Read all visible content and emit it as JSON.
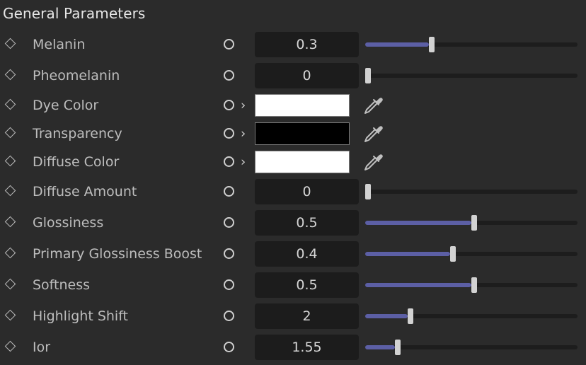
{
  "section": {
    "title": "General Parameters"
  },
  "colors": {
    "accent": "#5c5fa5",
    "track": "#1d1d1d",
    "field": "#1c1c1c"
  },
  "params": [
    {
      "id": "melanin",
      "label": "Melanin",
      "type": "slider",
      "value": "0.3",
      "fraction": 0.3
    },
    {
      "id": "pheomelanin",
      "label": "Pheomelanin",
      "type": "slider",
      "value": "0",
      "fraction": 0
    },
    {
      "id": "dye-color",
      "label": "Dye Color",
      "type": "color",
      "color": "#ffffff",
      "icon": "eyedropper-icon"
    },
    {
      "id": "transparency",
      "label": "Transparency",
      "type": "color",
      "color": "#000000",
      "icon": "eyedropper-icon"
    },
    {
      "id": "diffuse-color",
      "label": "Diffuse Color",
      "type": "color",
      "color": "#ffffff",
      "icon": "eyedropper-icon"
    },
    {
      "id": "diffuse-amount",
      "label": "Diffuse Amount",
      "type": "slider",
      "value": "0",
      "fraction": 0
    },
    {
      "id": "glossiness",
      "label": "Glossiness",
      "type": "slider",
      "value": "0.5",
      "fraction": 0.5
    },
    {
      "id": "primary-glossiness-boost",
      "label": "Primary Glossiness Boost",
      "type": "slider",
      "value": "0.4",
      "fraction": 0.4
    },
    {
      "id": "softness",
      "label": "Softness",
      "type": "slider",
      "value": "0.5",
      "fraction": 0.5
    },
    {
      "id": "highlight-shift",
      "label": "Highlight Shift",
      "type": "slider",
      "value": "2",
      "fraction": 0.2
    },
    {
      "id": "ior",
      "label": "Ior",
      "type": "slider",
      "value": "1.55",
      "fraction": 0.14
    }
  ]
}
